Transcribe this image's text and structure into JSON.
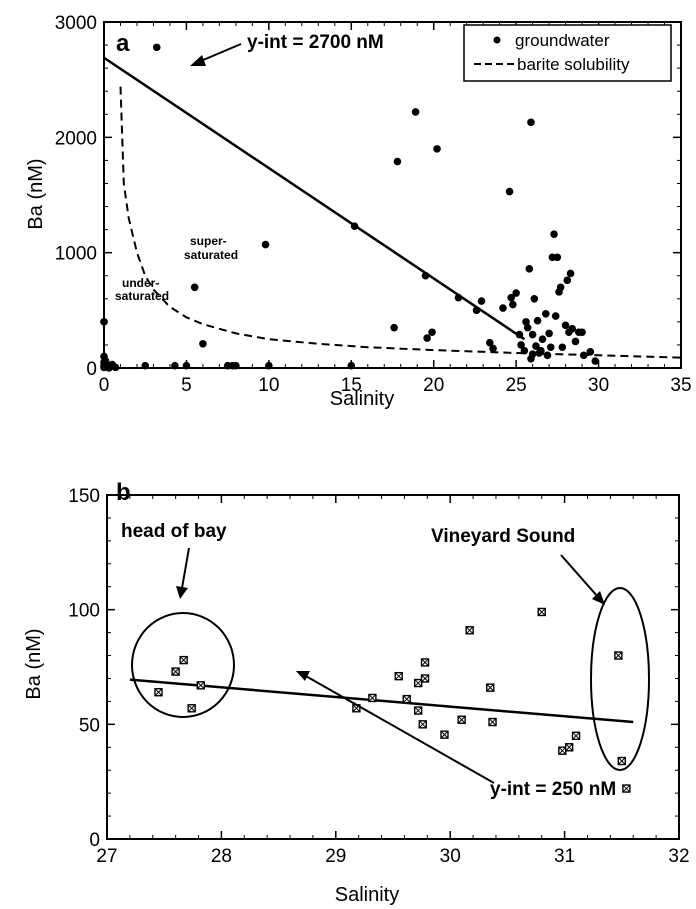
{
  "chart_data": [
    {
      "type": "scatter",
      "panel_label": "a",
      "xlabel": "Salinity",
      "ylabel": "Ba (nM)",
      "xlim": [
        0,
        35
      ],
      "ylim": [
        0,
        3000
      ],
      "x_ticks": [
        0,
        5,
        10,
        15,
        20,
        25,
        30,
        35
      ],
      "y_ticks": [
        0,
        1000,
        2000,
        3000
      ],
      "legend": {
        "placement": "top-right",
        "entries": [
          "groundwater",
          "barite solubility"
        ]
      },
      "series": [
        {
          "name": "groundwater",
          "marker": "filled-circle",
          "points": [
            [
              0,
              400
            ],
            [
              0,
              100
            ],
            [
              0,
              50
            ],
            [
              0,
              20
            ],
            [
              0,
              5
            ],
            [
              0.1,
              60
            ],
            [
              0.2,
              10
            ],
            [
              0.3,
              0
            ],
            [
              0.5,
              30
            ],
            [
              0.7,
              5
            ],
            [
              3.2,
              2780
            ],
            [
              4.3,
              20
            ],
            [
              2.5,
              20
            ],
            [
              5,
              20
            ],
            [
              5.5,
              700
            ],
            [
              6,
              210
            ],
            [
              7.5,
              20
            ],
            [
              7.8,
              20
            ],
            [
              8,
              20
            ],
            [
              9.8,
              1070
            ],
            [
              10,
              20
            ],
            [
              15,
              20
            ],
            [
              15.2,
              1230
            ],
            [
              17.8,
              1790
            ],
            [
              17.6,
              350
            ],
            [
              18.9,
              2220
            ],
            [
              19.5,
              800
            ],
            [
              19.6,
              260
            ],
            [
              19.9,
              310
            ],
            [
              20.2,
              1900
            ],
            [
              21.5,
              610
            ],
            [
              22.6,
              500
            ],
            [
              22.9,
              580
            ],
            [
              23.4,
              220
            ],
            [
              23.6,
              170
            ],
            [
              24.2,
              520
            ],
            [
              24.6,
              1530
            ],
            [
              24.7,
              610
            ],
            [
              24.8,
              550
            ],
            [
              25.0,
              650
            ],
            [
              25.2,
              290
            ],
            [
              25.3,
              200
            ],
            [
              25.5,
              150
            ],
            [
              25.6,
              400
            ],
            [
              25.7,
              350
            ],
            [
              25.8,
              860
            ],
            [
              25.9,
              2130
            ],
            [
              25.9,
              80
            ],
            [
              26.0,
              290
            ],
            [
              26.0,
              120
            ],
            [
              26.1,
              600
            ],
            [
              26.2,
              190
            ],
            [
              26.3,
              410
            ],
            [
              26.4,
              130
            ],
            [
              26.5,
              150
            ],
            [
              26.6,
              250
            ],
            [
              26.8,
              470
            ],
            [
              26.9,
              110
            ],
            [
              27.0,
              300
            ],
            [
              27.1,
              180
            ],
            [
              27.2,
              960
            ],
            [
              27.3,
              1160
            ],
            [
              27.4,
              450
            ],
            [
              27.5,
              960
            ],
            [
              27.6,
              660
            ],
            [
              27.7,
              700
            ],
            [
              27.8,
              180
            ],
            [
              28.0,
              370
            ],
            [
              28.1,
              760
            ],
            [
              28.2,
              310
            ],
            [
              28.3,
              820
            ],
            [
              28.4,
              340
            ],
            [
              28.6,
              230
            ],
            [
              28.8,
              310
            ],
            [
              29.0,
              310
            ],
            [
              29.1,
              110
            ],
            [
              29.5,
              140
            ],
            [
              29.8,
              60
            ]
          ]
        },
        {
          "name": "barite solubility",
          "line_style": "dashed",
          "points": [
            [
              1.0,
              2440
            ],
            [
              1.2,
              1600
            ],
            [
              1.5,
              1300
            ],
            [
              2.0,
              1000
            ],
            [
              2.5,
              800
            ],
            [
              3.0,
              680
            ],
            [
              4.0,
              530
            ],
            [
              5.0,
              440
            ],
            [
              6.0,
              380
            ],
            [
              8.0,
              300
            ],
            [
              10.0,
              250
            ],
            [
              13.0,
              210
            ],
            [
              16.0,
              180
            ],
            [
              20.0,
              155
            ],
            [
              25.0,
              130
            ],
            [
              30.0,
              110
            ],
            [
              35.0,
              90
            ]
          ]
        },
        {
          "name": "regression",
          "line_style": "solid",
          "points": [
            [
              0,
              2690
            ],
            [
              25.5,
              250
            ]
          ]
        }
      ],
      "annotations": {
        "y_intercept": "y-int = 2700 nM",
        "super": "super-",
        "saturated": "saturated",
        "under": "under-",
        "under_saturated": "saturated"
      }
    },
    {
      "type": "scatter",
      "panel_label": "b",
      "xlabel": "Salinity",
      "ylabel": "Ba (nM)",
      "xlim": [
        27,
        32
      ],
      "ylim": [
        0,
        150
      ],
      "x_ticks": [
        27,
        28,
        29,
        30,
        31,
        32
      ],
      "y_ticks": [
        0,
        50,
        100,
        150
      ],
      "series": [
        {
          "name": "samples",
          "marker": "hatched-square",
          "points": [
            [
              27.45,
              64
            ],
            [
              27.6,
              73
            ],
            [
              27.67,
              78
            ],
            [
              27.74,
              57
            ],
            [
              27.82,
              67
            ],
            [
              29.18,
              57
            ],
            [
              29.32,
              61.5
            ],
            [
              29.55,
              71
            ],
            [
              29.62,
              61
            ],
            [
              29.72,
              56
            ],
            [
              29.72,
              68
            ],
            [
              29.76,
              50
            ],
            [
              29.78,
              77
            ],
            [
              29.78,
              70
            ],
            [
              29.95,
              45.5
            ],
            [
              30.1,
              52
            ],
            [
              30.17,
              91
            ],
            [
              30.35,
              66
            ],
            [
              30.37,
              51
            ],
            [
              30.8,
              99
            ],
            [
              30.98,
              38.5
            ],
            [
              31.04,
              40
            ],
            [
              31.1,
              45
            ],
            [
              31.47,
              80
            ],
            [
              31.5,
              34
            ],
            [
              31.54,
              22
            ]
          ]
        },
        {
          "name": "regression",
          "line_style": "solid",
          "points": [
            [
              27.2,
              69.5
            ],
            [
              31.6,
              51
            ]
          ]
        }
      ],
      "annotations": {
        "head_of_bay": "head of bay",
        "vineyard_sound": "Vineyard Sound",
        "y_intercept": "y-int = 250 nM"
      }
    }
  ]
}
